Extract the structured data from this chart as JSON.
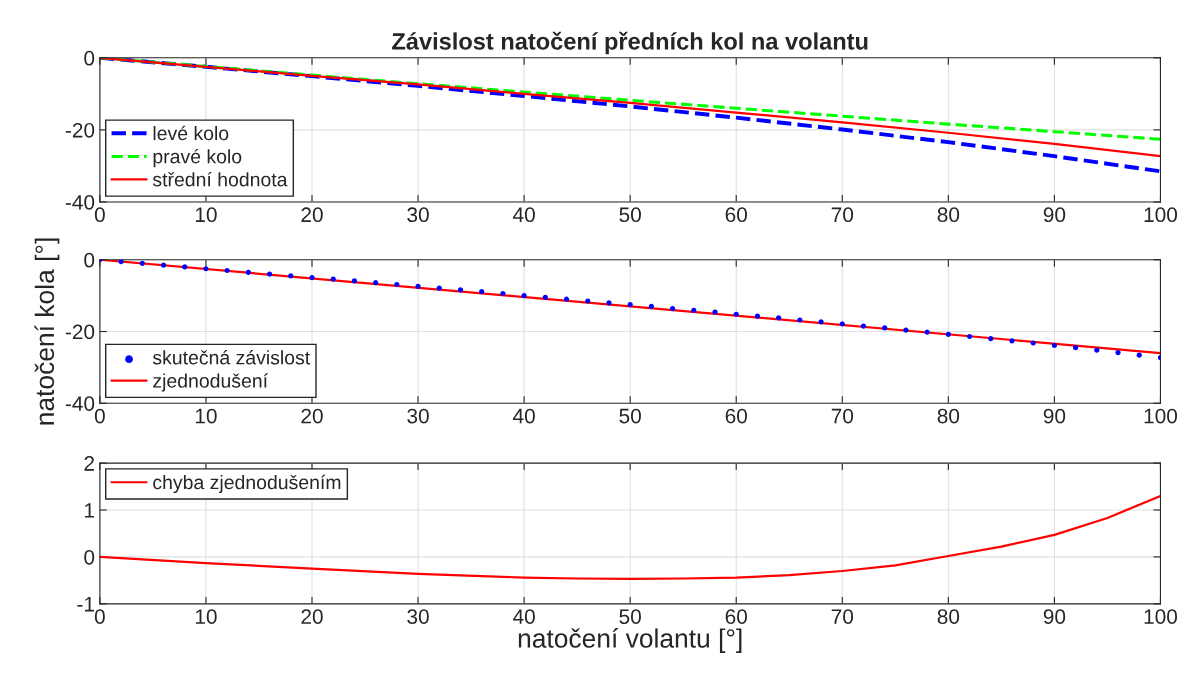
{
  "chart_data": [
    {
      "type": "line",
      "title": "Závislost natočení předních kol na volantu",
      "x": [
        0,
        10,
        20,
        30,
        40,
        50,
        60,
        70,
        80,
        90,
        100
      ],
      "xlim": [
        0,
        100
      ],
      "xticks": [
        0,
        10,
        20,
        30,
        40,
        50,
        60,
        70,
        80,
        90,
        100
      ],
      "ylim": [
        -40,
        0
      ],
      "yticks": [
        -40,
        -20,
        0
      ],
      "grid": true,
      "legend": "bottom left",
      "series": [
        {
          "name": "levé kolo",
          "color": "#0000ff",
          "line_style": "dashed",
          "values": [
            0,
            -2.5,
            -5.1,
            -7.8,
            -10.6,
            -13.5,
            -16.6,
            -19.9,
            -23.4,
            -27.3,
            -31.5
          ]
        },
        {
          "name": "pravé kolo",
          "color": "#00ff00",
          "line_style": "dashed",
          "values": [
            0,
            -2.4,
            -4.8,
            -7.2,
            -9.5,
            -11.8,
            -14.0,
            -16.2,
            -18.4,
            -20.5,
            -22.6
          ]
        },
        {
          "name": "střední hodnota",
          "color": "#ff0000",
          "line_style": "solid",
          "values": [
            0,
            -2.5,
            -5.0,
            -7.4,
            -10.0,
            -12.5,
            -15.2,
            -17.9,
            -20.8,
            -23.9,
            -27.3
          ]
        }
      ]
    },
    {
      "type": "line",
      "ylabel": "natočení kola [°]",
      "xlim": [
        0,
        100
      ],
      "xticks": [
        0,
        10,
        20,
        30,
        40,
        50,
        60,
        70,
        80,
        90,
        100
      ],
      "ylim": [
        -40,
        0
      ],
      "yticks": [
        -40,
        -20,
        0
      ],
      "grid": true,
      "legend": "bottom left",
      "series": [
        {
          "name": "skutečná závislost",
          "type": "scatter",
          "marker": "circle",
          "color": "#0000ff",
          "x": [
            0,
            2,
            4,
            6,
            8,
            10,
            12,
            14,
            16,
            18,
            20,
            22,
            24,
            26,
            28,
            30,
            32,
            34,
            36,
            38,
            40,
            42,
            44,
            46,
            48,
            50,
            52,
            54,
            56,
            58,
            60,
            62,
            64,
            66,
            68,
            70,
            72,
            74,
            76,
            78,
            80,
            82,
            84,
            86,
            88,
            90,
            92,
            94,
            96,
            98,
            100
          ],
          "values": [
            0,
            -0.5,
            -1.0,
            -1.5,
            -2.0,
            -2.5,
            -3.0,
            -3.5,
            -4.0,
            -4.5,
            -5.0,
            -5.4,
            -5.9,
            -6.4,
            -6.9,
            -7.4,
            -7.9,
            -8.4,
            -8.9,
            -9.4,
            -10.0,
            -10.5,
            -11.0,
            -11.5,
            -12.0,
            -12.5,
            -13.0,
            -13.6,
            -14.1,
            -14.6,
            -15.2,
            -15.7,
            -16.2,
            -16.8,
            -17.3,
            -17.9,
            -18.5,
            -19.0,
            -19.6,
            -20.2,
            -20.8,
            -21.4,
            -22.0,
            -22.6,
            -23.2,
            -23.9,
            -24.5,
            -25.2,
            -25.9,
            -26.6,
            -27.3
          ]
        },
        {
          "name": "zjednodušení",
          "type": "line",
          "line_style": "solid",
          "color": "#ff0000",
          "x": [
            0,
            100
          ],
          "values": [
            0,
            -26
          ]
        }
      ]
    },
    {
      "type": "line",
      "xlabel": "natočení volantu [°]",
      "xlim": [
        0,
        100
      ],
      "xticks": [
        0,
        10,
        20,
        30,
        40,
        50,
        60,
        70,
        80,
        90,
        100
      ],
      "ylim": [
        -1,
        2
      ],
      "yticks": [
        -1,
        0,
        1,
        2
      ],
      "grid": true,
      "legend": "top left",
      "series": [
        {
          "name": "chyba zjednodušením",
          "color": "#ff0000",
          "line_style": "solid",
          "x": [
            0,
            10,
            20,
            30,
            40,
            45,
            50,
            55,
            60,
            65,
            70,
            75,
            80,
            85,
            90,
            95,
            100
          ],
          "values": [
            0,
            -0.13,
            -0.25,
            -0.36,
            -0.44,
            -0.46,
            -0.47,
            -0.46,
            -0.44,
            -0.39,
            -0.3,
            -0.18,
            0.02,
            0.22,
            0.47,
            0.83,
            1.3
          ]
        }
      ]
    }
  ]
}
